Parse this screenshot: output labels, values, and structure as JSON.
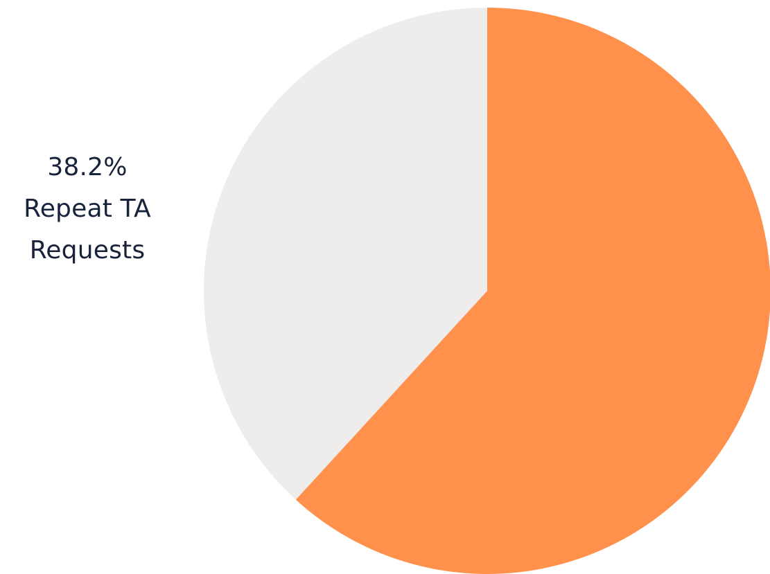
{
  "chart_data": {
    "type": "pie",
    "title": "",
    "slices": [
      {
        "name": "",
        "value": 61.8,
        "color": "#ff914d"
      },
      {
        "name": "Repeat TA Requests",
        "value": 38.2,
        "color": "#eeedeb"
      }
    ],
    "data_labels": [
      {
        "value": "38.2%",
        "text": "Repeat TA Requests",
        "text_line1": "Repeat TA",
        "text_line2": "Requests"
      }
    ],
    "legend": "none"
  }
}
